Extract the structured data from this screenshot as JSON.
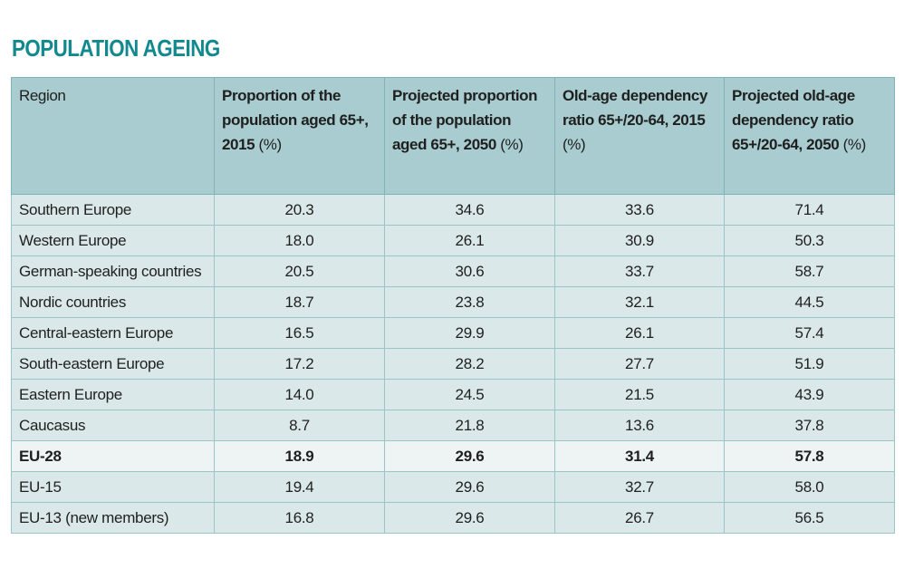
{
  "title": "POPULATION AGEING",
  "table": {
    "headers": [
      {
        "bold": "Region",
        "normal": ""
      },
      {
        "bold": "Proportion of the population aged 65+, 2015",
        "normal": " (%)"
      },
      {
        "bold": "Projected proportion of the population aged 65+, 2050",
        "normal": " (%)"
      },
      {
        "bold": "Old-age dependency ratio 65+/20-64, 2015",
        "normal": " (%)"
      },
      {
        "bold": "Projected old-age dependency ratio 65+/20-64, 2050",
        "normal": " (%)"
      }
    ],
    "rows": [
      {
        "region": "Southern Europe",
        "values": [
          "20.3",
          "34.6",
          "33.6",
          "71.4"
        ],
        "bold": false
      },
      {
        "region": "Western Europe",
        "values": [
          "18.0",
          "26.1",
          "30.9",
          "50.3"
        ],
        "bold": false
      },
      {
        "region": "German-speaking countries",
        "values": [
          "20.5",
          "30.6",
          "33.7",
          "58.7"
        ],
        "bold": false
      },
      {
        "region": "Nordic countries",
        "values": [
          "18.7",
          "23.8",
          "32.1",
          "44.5"
        ],
        "bold": false
      },
      {
        "region": "Central-eastern Europe",
        "values": [
          "16.5",
          "29.9",
          "26.1",
          "57.4"
        ],
        "bold": false
      },
      {
        "region": "South-eastern Europe",
        "values": [
          "17.2",
          "28.2",
          "27.7",
          "51.9"
        ],
        "bold": false
      },
      {
        "region": "Eastern Europe",
        "values": [
          "14.0",
          "24.5",
          "21.5",
          "43.9"
        ],
        "bold": false
      },
      {
        "region": "Caucasus",
        "values": [
          "8.7",
          "21.8",
          "13.6",
          "37.8"
        ],
        "bold": false
      },
      {
        "region": "EU-28",
        "values": [
          "18.9",
          "29.6",
          "31.4",
          "57.8"
        ],
        "bold": true
      },
      {
        "region": "EU-15",
        "values": [
          "19.4",
          "29.6",
          "32.7",
          "58.0"
        ],
        "bold": false
      },
      {
        "region": "EU-13 (new members)",
        "values": [
          "16.8",
          "29.6",
          "26.7",
          "56.5"
        ],
        "bold": false
      }
    ]
  }
}
